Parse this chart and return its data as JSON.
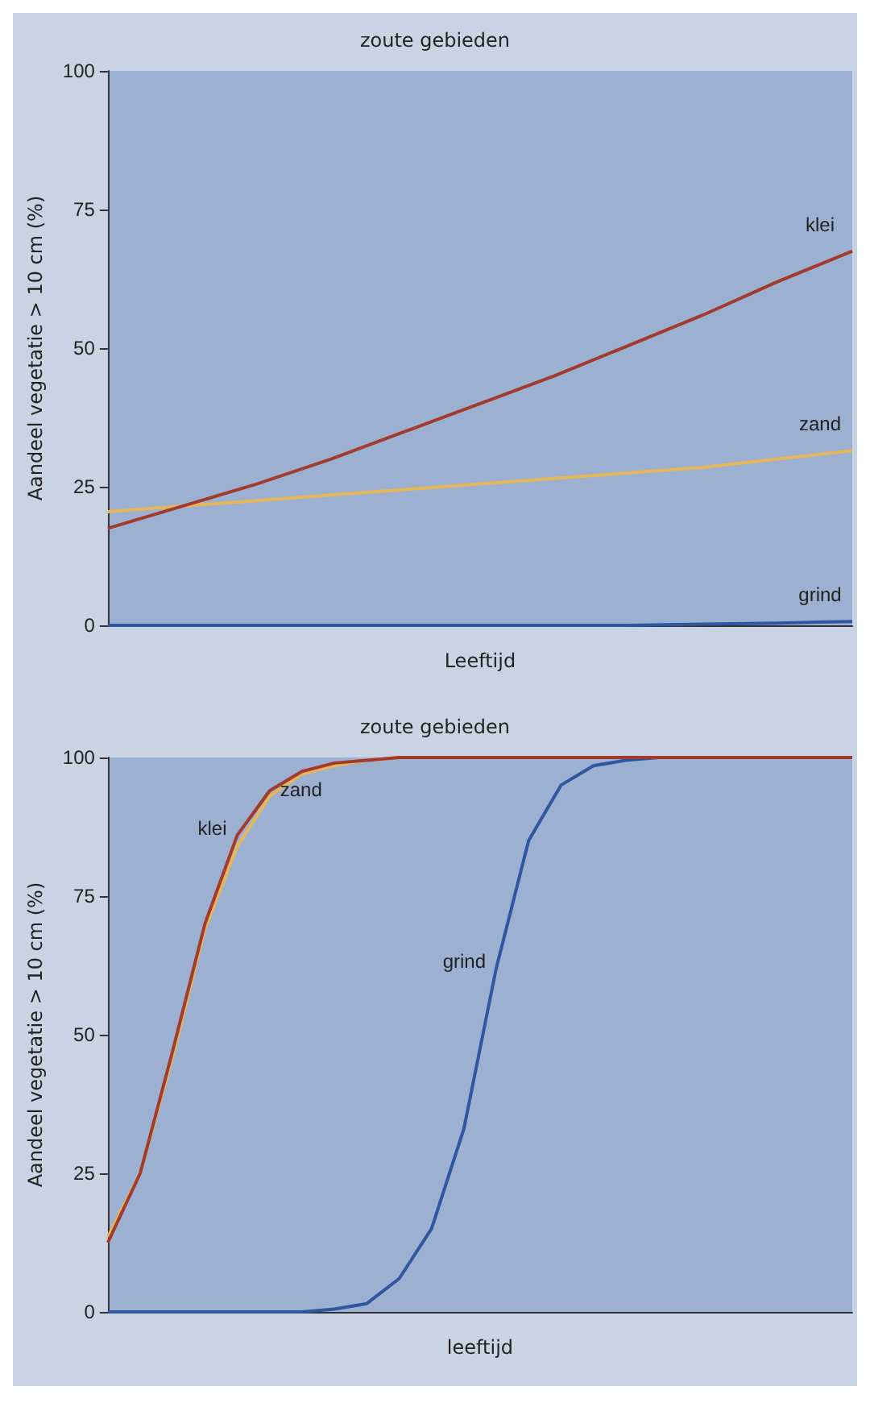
{
  "chart_data": [
    {
      "type": "line",
      "title": "zoute gebieden",
      "xlabel": "Leeftijd",
      "ylabel": "Aandeel vegetatie > 10 cm (%)",
      "categories": [
        null,
        null,
        null,
        null,
        null,
        null,
        null,
        null,
        null,
        null,
        null
      ],
      "ylim": [
        0,
        100
      ],
      "yticks": [
        0,
        25,
        50,
        75,
        100
      ],
      "marker": "none",
      "series": [
        {
          "name": "klei",
          "color": "#a23a2e",
          "values": [
            17.5,
            21.5,
            25.5,
            30,
            35,
            40,
            45,
            50.5,
            56,
            62,
            67.5
          ]
        },
        {
          "name": "zand",
          "color": "#e6b65a",
          "values": [
            20.5,
            21.5,
            22.5,
            23.5,
            24.5,
            25.5,
            26.5,
            27.5,
            28.5,
            30,
            31.5
          ]
        },
        {
          "name": "grind",
          "color": "#2f56a0",
          "values": [
            0,
            0,
            0,
            0,
            0,
            0,
            0,
            0,
            0.2,
            0.4,
            0.7
          ]
        }
      ]
    },
    {
      "type": "line",
      "title": "zoute gebieden",
      "xlabel": "leeftijd",
      "ylabel": "Aandeel vegetatie > 10 cm (%)",
      "categories": [
        null,
        null,
        null,
        null,
        null,
        null,
        null,
        null,
        null,
        null,
        null,
        null,
        null,
        null,
        null,
        null,
        null,
        null,
        null,
        null,
        null,
        null,
        null,
        null
      ],
      "ylim": [
        0,
        100
      ],
      "yticks": [
        0,
        25,
        50,
        75,
        100
      ],
      "marker": "none",
      "series": [
        {
          "name": "klei",
          "color": "#a23a2e",
          "values": [
            12.5,
            25,
            47,
            70,
            86,
            94,
            97.5,
            99,
            99.5,
            100,
            100,
            100,
            100,
            100,
            100,
            100,
            100,
            100,
            100,
            100,
            100,
            100,
            100,
            100
          ]
        },
        {
          "name": "zand",
          "color": "#e6b65a",
          "values": [
            13.5,
            25,
            46,
            69,
            84,
            93,
            97,
            98.5,
            99.5,
            100,
            null,
            null,
            null,
            null,
            null,
            null,
            null,
            null,
            null,
            null,
            null,
            null,
            null,
            null
          ]
        },
        {
          "name": "grind",
          "color": "#2f56a0",
          "values": [
            0,
            0,
            0,
            0,
            0,
            0,
            0,
            0.5,
            1.5,
            6,
            15,
            33,
            62,
            85,
            95,
            98.5,
            99.5,
            100,
            null,
            null,
            null,
            null,
            null,
            null
          ]
        }
      ]
    }
  ]
}
